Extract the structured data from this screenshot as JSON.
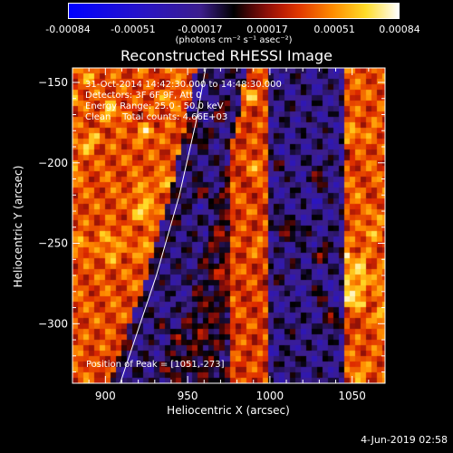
{
  "chart_data": {
    "type": "heatmap",
    "title": "Reconstructed RHESSI Image",
    "xlabel": "Heliocentric X (arcsec)",
    "ylabel": "Heliocentric Y (arcsec)",
    "xlim": [
      880,
      1070
    ],
    "ylim": [
      -337,
      -141
    ],
    "xticks": [
      900,
      950,
      1000,
      1050
    ],
    "yticks": [
      -150,
      -200,
      -250,
      -300
    ],
    "colorbar": {
      "min": -0.00084,
      "max": 0.00084,
      "ticks": [
        "-0.00084",
        "-0.00051",
        "-0.00017",
        "0.00017",
        "0.00051",
        "0.00084"
      ],
      "units": "(photons cm⁻² s⁻¹ asec⁻²)"
    },
    "annotations": [
      "31-Oct-2014 14:42:30.000 to 14:48:30.000",
      "Detectors: 3F 6F 9F, Att 0",
      "Energy Range: 25.0 - 50.0 keV",
      "Clean    Total counts: 4.66E+03"
    ],
    "peak_label": "Position of Peak = [1051,-273]",
    "peak": [
      1051,
      -273
    ],
    "limb_line": [
      [
        909,
        -337
      ],
      [
        931,
        -270
      ],
      [
        945,
        -220
      ],
      [
        955,
        -175
      ],
      [
        961,
        -141
      ]
    ]
  },
  "footer": "4-Jun-2019 02:58"
}
